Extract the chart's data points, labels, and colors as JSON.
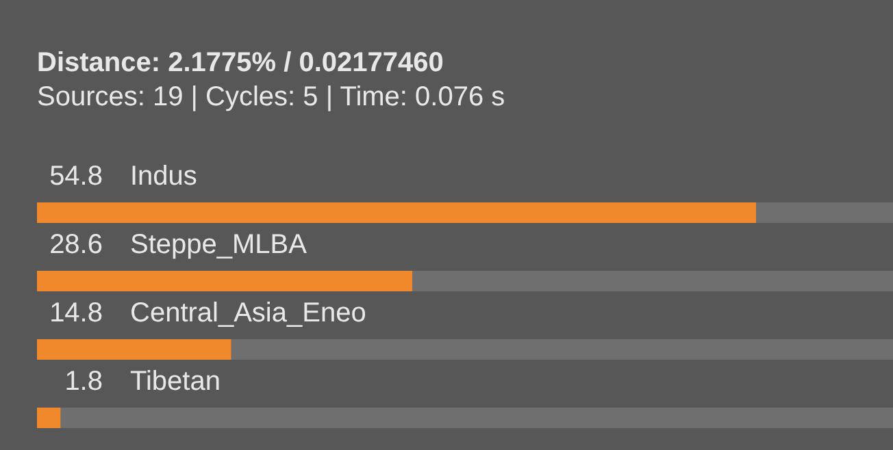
{
  "chart_data": {
    "type": "bar",
    "orientation": "horizontal",
    "title": "Distance: 2.1775% / 0.02177460",
    "subtitle": "Sources: 19 | Cycles: 5 | Time: 0.076 s",
    "categories": [
      "Indus",
      "Steppe_MLBA",
      "Central_Asia_Eneo",
      "Tibetan"
    ],
    "values": [
      54.8,
      28.6,
      14.8,
      1.8
    ],
    "color": "#f0892b",
    "data_labels": true
  }
}
